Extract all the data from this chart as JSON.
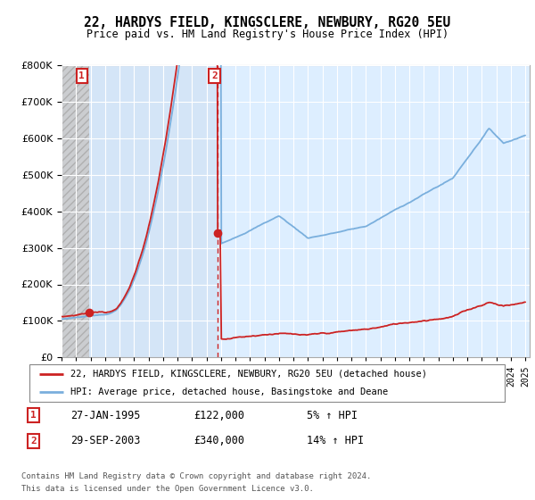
{
  "title": "22, HARDYS FIELD, KINGSCLERE, NEWBURY, RG20 5EU",
  "subtitle": "Price paid vs. HM Land Registry's House Price Index (HPI)",
  "sale1_date": "27-JAN-1995",
  "sale1_price": 122000,
  "sale1_pct": "5%",
  "sale2_date": "29-SEP-2003",
  "sale2_price": 340000,
  "sale2_pct": "14%",
  "sale1_year": 1994.9,
  "sale2_year": 2003.75,
  "line1_color": "#cc2222",
  "line2_color": "#7aafdd",
  "legend1": "22, HARDYS FIELD, KINGSCLERE, NEWBURY, RG20 5EU (detached house)",
  "legend2": "HPI: Average price, detached house, Basingstoke and Deane",
  "footer": "Contains HM Land Registry data © Crown copyright and database right 2024.\nThis data is licensed under the Open Government Licence v3.0.",
  "ylim": [
    0,
    800000
  ],
  "xlim_start": 1993.0,
  "xlim_end": 2025.3
}
